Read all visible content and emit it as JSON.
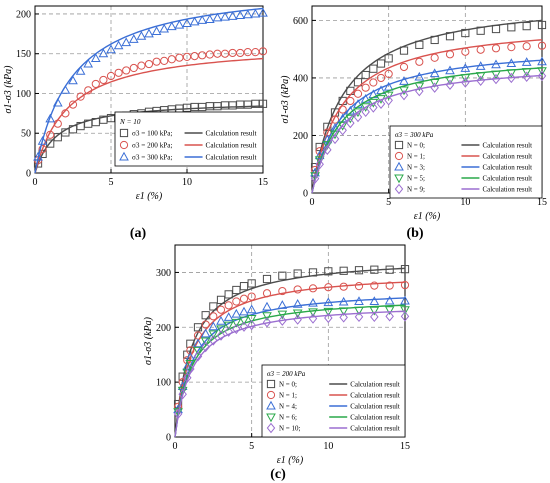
{
  "figure": {
    "panel_labels": [
      "(a)",
      "(b)",
      "(c)"
    ]
  },
  "chart_data": [
    {
      "id": "a",
      "type": "scatter",
      "xlabel": "ε1 (%)",
      "ylabel": "σ1-σ3 (kPa)",
      "xlim": [
        0,
        15
      ],
      "ylim": [
        0,
        210
      ],
      "xticks": [
        0,
        5,
        10,
        15
      ],
      "yticks": [
        0,
        50,
        100,
        150,
        200
      ],
      "grid": true,
      "legend_placement": "bottom-right",
      "legend_title": "N = 10",
      "legend_fit_label": "Calculation result",
      "series": [
        {
          "name": "σ3 = 100 kPa;",
          "marker": "square",
          "color": "#4d4d4d",
          "x": [
            0.2,
            0.5,
            1,
            1.5,
            2,
            2.5,
            3,
            3.5,
            4,
            4.5,
            5,
            5.5,
            6,
            6.5,
            7,
            7.5,
            8,
            8.5,
            9,
            9.5,
            10,
            10.5,
            11,
            11.5,
            12,
            12.5,
            13,
            13.5,
            14,
            14.5,
            15
          ],
          "y": [
            12,
            24,
            37,
            45,
            51,
            55,
            59,
            62,
            64,
            67,
            69,
            71,
            72,
            74,
            75,
            77,
            78,
            79,
            80,
            81,
            82,
            83,
            83,
            84,
            84,
            85,
            85,
            86,
            86,
            87,
            87
          ],
          "fit": {
            "a": 1.4,
            "max": 92
          }
        },
        {
          "name": "σ3 = 200 kPa;",
          "marker": "circle",
          "color": "#d9534f",
          "x": [
            0.2,
            0.5,
            1,
            1.5,
            2,
            2.5,
            3,
            3.5,
            4,
            4.5,
            5,
            5.5,
            6,
            6.5,
            7,
            7.5,
            8,
            8.5,
            9,
            9.5,
            10,
            10.5,
            11,
            11.5,
            12,
            12.5,
            13,
            13.5,
            14,
            14.5,
            15
          ],
          "y": [
            16,
            30,
            48,
            62,
            75,
            86,
            96,
            104,
            112,
            117,
            122,
            126,
            129,
            132,
            135,
            137,
            140,
            141,
            143,
            145,
            146,
            147,
            148,
            149,
            150,
            150,
            151,
            151,
            152,
            152,
            153
          ],
          "fit": {
            "a": 2.2,
            "max": 165
          }
        },
        {
          "name": "σ3 = 300 kPa;",
          "marker": "triangle",
          "color": "#3b6fd6",
          "x": [
            0.2,
            0.5,
            1,
            1.5,
            2,
            2.5,
            3,
            3.5,
            4,
            4.5,
            5,
            5.5,
            6,
            6.5,
            7,
            7.5,
            8,
            8.5,
            9,
            9.5,
            10,
            10.5,
            11,
            11.5,
            12,
            12.5,
            13,
            13.5,
            14,
            14.5,
            15
          ],
          "y": [
            20,
            40,
            68,
            88,
            104,
            116,
            128,
            137,
            144,
            150,
            155,
            160,
            164,
            168,
            172,
            175,
            178,
            181,
            184,
            186,
            188,
            190,
            192,
            193,
            195,
            196,
            197,
            198,
            199,
            200,
            201
          ],
          "fit": {
            "a": 2.4,
            "max": 240
          }
        }
      ]
    },
    {
      "id": "b",
      "type": "scatter",
      "xlabel": "ε1 (%)",
      "ylabel": "σ1-σ3 (kPa)",
      "xlim": [
        0,
        15
      ],
      "ylim": [
        0,
        650
      ],
      "xticks": [
        0,
        5,
        10,
        15
      ],
      "yticks": [
        0,
        200,
        400,
        600
      ],
      "grid": true,
      "legend_placement": "bottom-right",
      "legend_title": "σ3 = 300 kPa",
      "legend_fit_label": "Calculation result",
      "series": [
        {
          "name": "N = 0;",
          "marker": "square",
          "color": "#4d4d4d",
          "x": [
            0.2,
            0.5,
            1,
            1.5,
            2,
            2.5,
            3,
            3.5,
            4,
            4.5,
            5,
            6,
            7,
            8,
            9,
            10,
            11,
            12,
            13,
            14,
            15
          ],
          "y": [
            90,
            160,
            230,
            280,
            320,
            355,
            385,
            410,
            432,
            450,
            468,
            495,
            515,
            532,
            545,
            556,
            564,
            570,
            576,
            580,
            584
          ],
          "fit": {
            "a": 2.0,
            "max": 680
          }
        },
        {
          "name": "N = 1;",
          "marker": "circle",
          "color": "#d9534f",
          "x": [
            0.2,
            0.5,
            1,
            1.5,
            2,
            2.5,
            3,
            3.5,
            4,
            4.5,
            5,
            6,
            7,
            8,
            9,
            10,
            11,
            12,
            13,
            14,
            15
          ],
          "y": [
            80,
            145,
            210,
            255,
            290,
            320,
            345,
            366,
            384,
            400,
            414,
            438,
            456,
            470,
            482,
            491,
            498,
            503,
            507,
            510,
            512
          ],
          "fit": {
            "a": 1.9,
            "max": 600
          }
        },
        {
          "name": "N = 3;",
          "marker": "triangle",
          "color": "#3b6fd6",
          "x": [
            0.2,
            0.5,
            1,
            1.5,
            2,
            2.5,
            3,
            3.5,
            4,
            4.5,
            5,
            6,
            7,
            8,
            9,
            10,
            11,
            12,
            13,
            14,
            15
          ],
          "y": [
            70,
            130,
            185,
            225,
            258,
            285,
            308,
            326,
            342,
            356,
            368,
            388,
            403,
            415,
            425,
            433,
            440,
            446,
            450,
            454,
            456
          ],
          "fit": {
            "a": 1.9,
            "max": 520
          }
        },
        {
          "name": "N = 5;",
          "marker": "triangle-down",
          "color": "#2aa84a",
          "x": [
            0.2,
            0.5,
            1,
            1.5,
            2,
            2.5,
            3,
            3.5,
            4,
            4.5,
            5,
            6,
            7,
            8,
            9,
            10,
            11,
            12,
            13,
            14,
            15
          ],
          "y": [
            60,
            115,
            168,
            205,
            235,
            260,
            282,
            300,
            315,
            328,
            340,
            358,
            372,
            384,
            393,
            401,
            408,
            413,
            418,
            422,
            425
          ],
          "fit": {
            "a": 1.9,
            "max": 490
          }
        },
        {
          "name": "N = 9;",
          "marker": "diamond",
          "color": "#9b6fd0",
          "x": [
            0.2,
            0.5,
            1,
            1.5,
            2,
            2.5,
            3,
            3.5,
            4,
            4.5,
            5,
            6,
            7,
            8,
            9,
            10,
            11,
            12,
            13,
            14,
            15
          ],
          "y": [
            50,
            100,
            150,
            188,
            218,
            243,
            264,
            282,
            297,
            310,
            322,
            340,
            354,
            366,
            376,
            384,
            390,
            396,
            400,
            404,
            407
          ],
          "fit": {
            "a": 1.9,
            "max": 460
          }
        }
      ]
    },
    {
      "id": "c",
      "type": "scatter",
      "xlabel": "ε1 (%)",
      "ylabel": "σ1-σ3 (kPa)",
      "xlim": [
        0,
        15
      ],
      "ylim": [
        0,
        350
      ],
      "xticks": [
        0,
        5,
        10,
        15
      ],
      "yticks": [
        0,
        100,
        200,
        300
      ],
      "grid": true,
      "legend_placement": "bottom-right",
      "legend_title": "σ3 = 200 kPa",
      "legend_fit_label": "Calculation result",
      "series": [
        {
          "name": "N = 0;",
          "marker": "square",
          "color": "#4d4d4d",
          "x": [
            0.2,
            0.5,
            0.8,
            1,
            1.5,
            2,
            2.5,
            3,
            3.5,
            4,
            4.5,
            5,
            6,
            7,
            8,
            9,
            10,
            11,
            12,
            13,
            14,
            15
          ],
          "y": [
            60,
            110,
            150,
            170,
            200,
            222,
            238,
            250,
            260,
            268,
            275,
            280,
            288,
            294,
            298,
            300,
            302,
            303,
            304,
            305,
            305,
            306
          ],
          "fit": {
            "a": 1.1,
            "max": 330
          }
        },
        {
          "name": "N = 1;",
          "marker": "circle",
          "color": "#d9534f",
          "x": [
            0.2,
            0.5,
            0.8,
            1,
            1.5,
            2,
            2.5,
            3,
            3.5,
            4,
            4.5,
            5,
            6,
            7,
            8,
            9,
            10,
            11,
            12,
            13,
            14,
            15
          ],
          "y": [
            55,
            100,
            140,
            158,
            185,
            205,
            220,
            232,
            240,
            247,
            252,
            256,
            262,
            266,
            269,
            271,
            273,
            274,
            275,
            276,
            276,
            277
          ],
          "fit": {
            "a": 1.1,
            "max": 303
          }
        },
        {
          "name": "N = 4;",
          "marker": "triangle",
          "color": "#3b6fd6",
          "x": [
            0.2,
            0.5,
            0.8,
            1,
            1.5,
            2,
            2.5,
            3,
            3.5,
            4,
            4.5,
            5,
            6,
            7,
            8,
            9,
            10,
            11,
            12,
            13,
            14,
            15
          ],
          "y": [
            50,
            92,
            128,
            145,
            170,
            188,
            201,
            211,
            218,
            224,
            228,
            232,
            237,
            240,
            242,
            244,
            245,
            246,
            247,
            247,
            248,
            248
          ],
          "fit": {
            "a": 1.1,
            "max": 272
          }
        },
        {
          "name": "N = 6;",
          "marker": "triangle-down",
          "color": "#2aa84a",
          "x": [
            0.2,
            0.5,
            0.8,
            1,
            1.5,
            2,
            2.5,
            3,
            3.5,
            4,
            4.5,
            5,
            6,
            7,
            8,
            9,
            10,
            11,
            12,
            13,
            14,
            15
          ],
          "y": [
            46,
            85,
            118,
            134,
            158,
            175,
            188,
            197,
            204,
            209,
            213,
            216,
            221,
            224,
            226,
            228,
            229,
            230,
            231,
            231,
            232,
            232
          ],
          "fit": {
            "a": 1.1,
            "max": 258
          }
        },
        {
          "name": "N = 10;",
          "marker": "diamond",
          "color": "#9b6fd0",
          "x": [
            0.2,
            0.5,
            0.8,
            1,
            1.5,
            2,
            2.5,
            3,
            3.5,
            4,
            4.5,
            5,
            6,
            7,
            8,
            9,
            10,
            11,
            12,
            13,
            14,
            15
          ],
          "y": [
            42,
            78,
            108,
            124,
            147,
            164,
            176,
            185,
            192,
            197,
            201,
            204,
            209,
            212,
            214,
            216,
            217,
            218,
            219,
            219,
            220,
            220
          ],
          "fit": {
            "a": 1.1,
            "max": 246
          }
        }
      ]
    }
  ]
}
